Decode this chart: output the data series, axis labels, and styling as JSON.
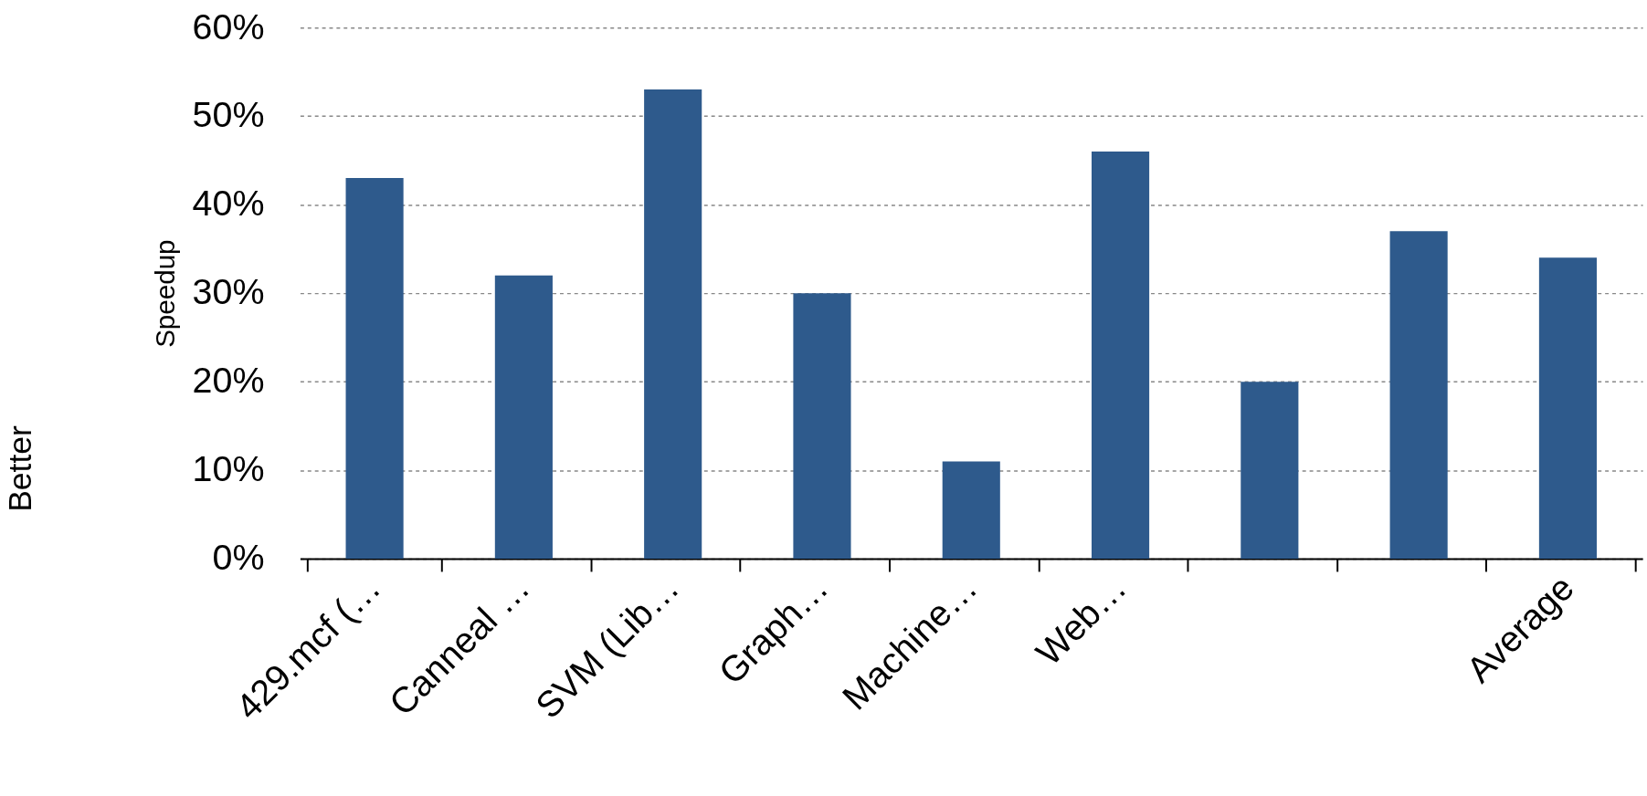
{
  "chart_data": {
    "type": "bar",
    "categories": [
      "429.mcf (…",
      "Canneal …",
      "SVM (Lib…",
      "Graph…",
      "Machine…",
      "Web…",
      null,
      null,
      "Average"
    ],
    "values": [
      43,
      32,
      53,
      30,
      11,
      46,
      20,
      37,
      34
    ],
    "color": "#2e5a8c",
    "ylabel": "Speedup",
    "annotations": [
      "Better"
    ],
    "ylim": [
      0,
      60
    ],
    "yticks": [
      {
        "value": 0,
        "label": "0%"
      },
      {
        "value": 10,
        "label": "10%"
      },
      {
        "value": 20,
        "label": "20%"
      },
      {
        "value": 30,
        "label": "30%"
      },
      {
        "value": 40,
        "label": "40%"
      },
      {
        "value": 50,
        "label": "50%"
      },
      {
        "value": 60,
        "label": "60%"
      }
    ],
    "grid": "y"
  }
}
